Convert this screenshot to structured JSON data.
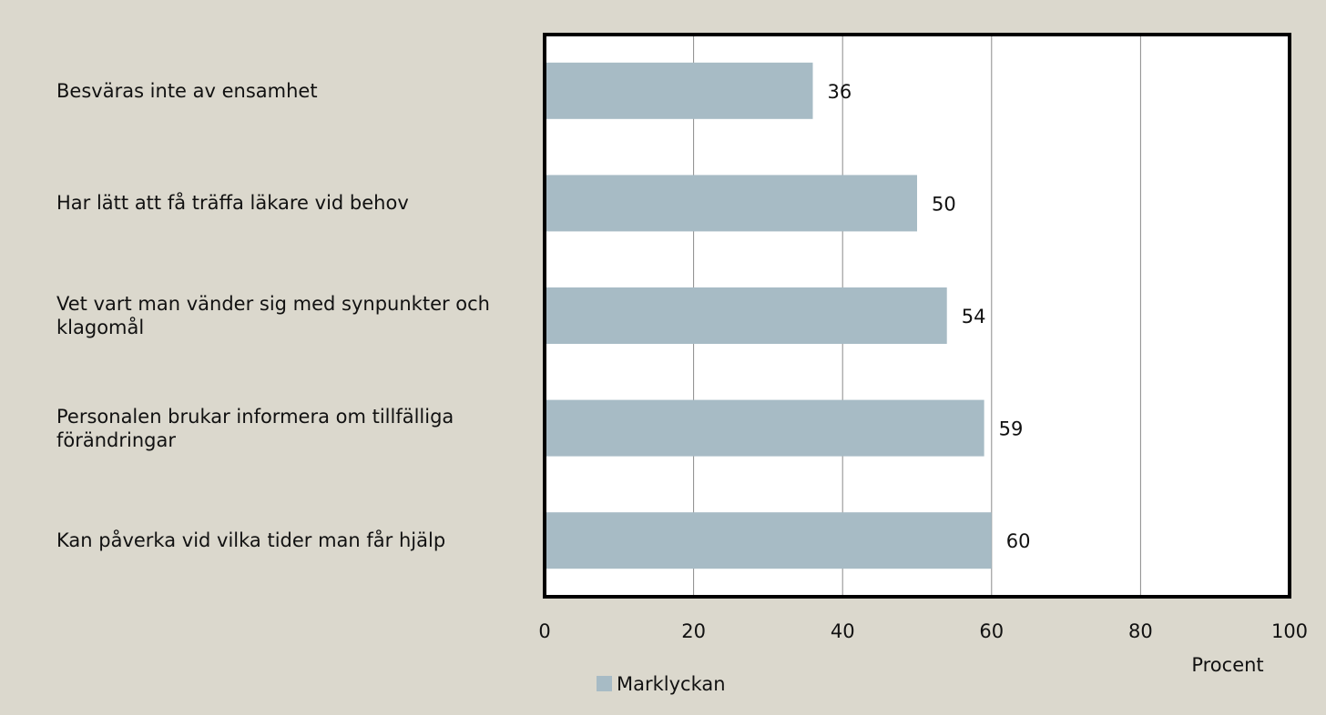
{
  "chart_data": {
    "type": "bar",
    "orientation": "horizontal",
    "categories": [
      "Besväras inte av ensamhet",
      "Har lätt att få träffa läkare vid behov",
      "Vet vart man vänder sig med synpunkter och klagomål",
      "Personalen brukar informera om tillfälliga förändringar",
      "Kan påverka vid vilka tider man får hjälp"
    ],
    "series": [
      {
        "name": "Marklyckan",
        "color": "#a7bbc5",
        "values": [
          36,
          50,
          54,
          59,
          60
        ]
      }
    ],
    "x_label": "Procent",
    "xlim": [
      0,
      100
    ],
    "xticks": [
      0,
      20,
      40,
      60,
      80,
      100
    ],
    "grid": true,
    "legend": "bottom"
  }
}
